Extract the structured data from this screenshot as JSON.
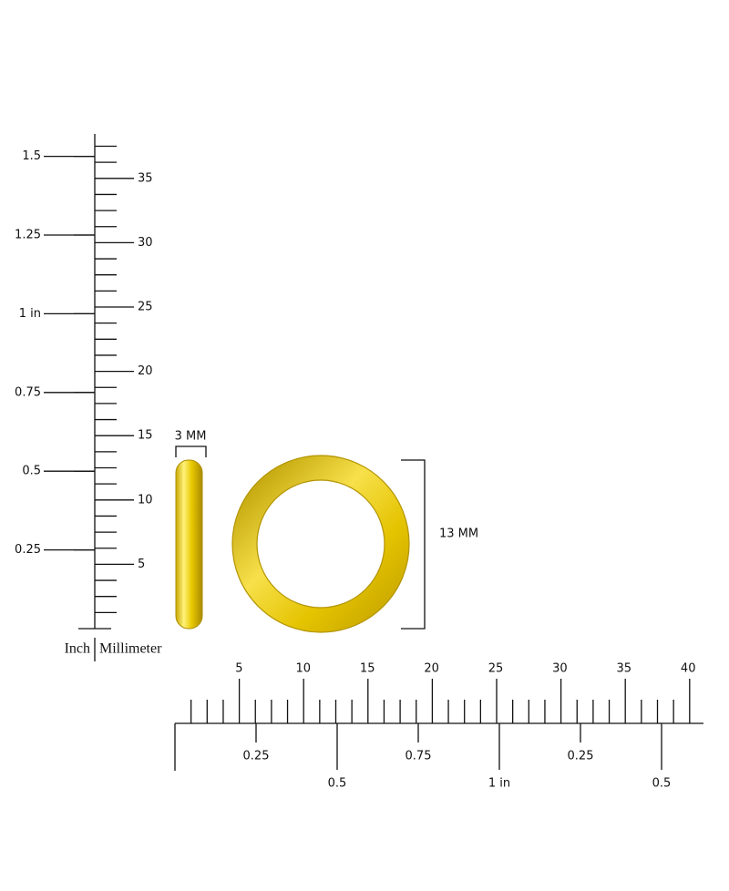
{
  "vertical_ruler": {
    "inch_labels": [
      "0.25",
      "0.5",
      "0.75",
      "1 in",
      "1.25",
      "1.5"
    ],
    "mm_labels": [
      "5",
      "10",
      "15",
      "20",
      "25",
      "30",
      "35"
    ],
    "inch_caption": "Inch",
    "mm_caption": "Millimeter"
  },
  "horizontal_ruler": {
    "mm_labels": [
      "5",
      "10",
      "15",
      "20",
      "25",
      "30",
      "35",
      "40"
    ],
    "inch_labels": [
      "0.25",
      "0.5",
      "0.75",
      "1 in",
      "0.25",
      "0.5"
    ]
  },
  "dimensions": {
    "width": "3 MM",
    "height": "13 MM"
  }
}
